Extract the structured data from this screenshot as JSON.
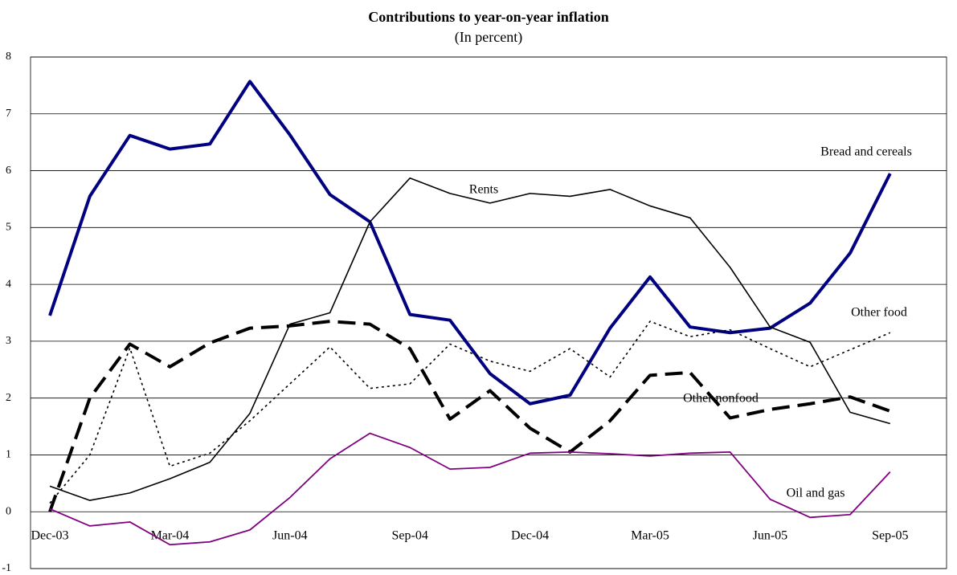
{
  "chart_data": {
    "type": "line",
    "title": "Contributions to year-on-year inflation",
    "subtitle": "(In percent)",
    "categories": [
      "Dec-03",
      null,
      null,
      "Mar-04",
      null,
      null,
      "Jun-04",
      null,
      null,
      "Sep-04",
      null,
      null,
      "Dec-04",
      null,
      null,
      "Mar-05",
      null,
      null,
      "Jun-05",
      null,
      null,
      "Sep-05"
    ],
    "series": [
      {
        "name": "Bread and cereals",
        "color": "#000080",
        "values": [
          3.45,
          5.55,
          6.62,
          6.38,
          6.47,
          7.57,
          6.63,
          5.58,
          5.1,
          3.47,
          3.37,
          2.43,
          1.9,
          2.05,
          3.23,
          4.13,
          3.25,
          3.15,
          3.23,
          3.67,
          4.55,
          5.95
        ]
      },
      {
        "name": "Rents",
        "color": "#000000",
        "values": [
          0.45,
          0.2,
          0.33,
          0.58,
          0.87,
          1.73,
          3.3,
          3.5,
          5.1,
          5.87,
          5.6,
          5.43,
          5.6,
          5.55,
          5.67,
          5.38,
          5.17,
          4.3,
          3.25,
          2.98,
          1.75,
          1.55
        ]
      },
      {
        "name": "Other food",
        "color": "#000000",
        "values": [
          0.15,
          1.0,
          2.88,
          0.8,
          1.03,
          1.6,
          2.25,
          2.9,
          2.17,
          2.25,
          2.95,
          2.65,
          2.47,
          2.87,
          2.37,
          3.35,
          3.08,
          3.2,
          2.87,
          2.55,
          2.85,
          3.15
        ]
      },
      {
        "name": "Other nonfood",
        "color": "#000000",
        "values": [
          0.0,
          2.0,
          2.95,
          2.55,
          2.97,
          3.23,
          3.27,
          3.35,
          3.3,
          2.87,
          1.63,
          2.13,
          1.47,
          1.05,
          1.6,
          2.4,
          2.45,
          1.65,
          1.8,
          1.9,
          2.02,
          1.77
        ]
      },
      {
        "name": "Oil and gas",
        "color": "#800080",
        "values": [
          0.05,
          -0.25,
          -0.18,
          -0.58,
          -0.53,
          -0.32,
          0.25,
          0.93,
          1.38,
          1.13,
          0.75,
          0.78,
          1.03,
          1.05,
          1.02,
          0.98,
          1.03,
          1.05,
          0.22,
          -0.1,
          -0.05,
          0.7
        ]
      }
    ],
    "ylim": [
      -1,
      8
    ],
    "yticks": [
      -1,
      0,
      1,
      2,
      3,
      4,
      5,
      6,
      7,
      8
    ],
    "grid": true
  }
}
